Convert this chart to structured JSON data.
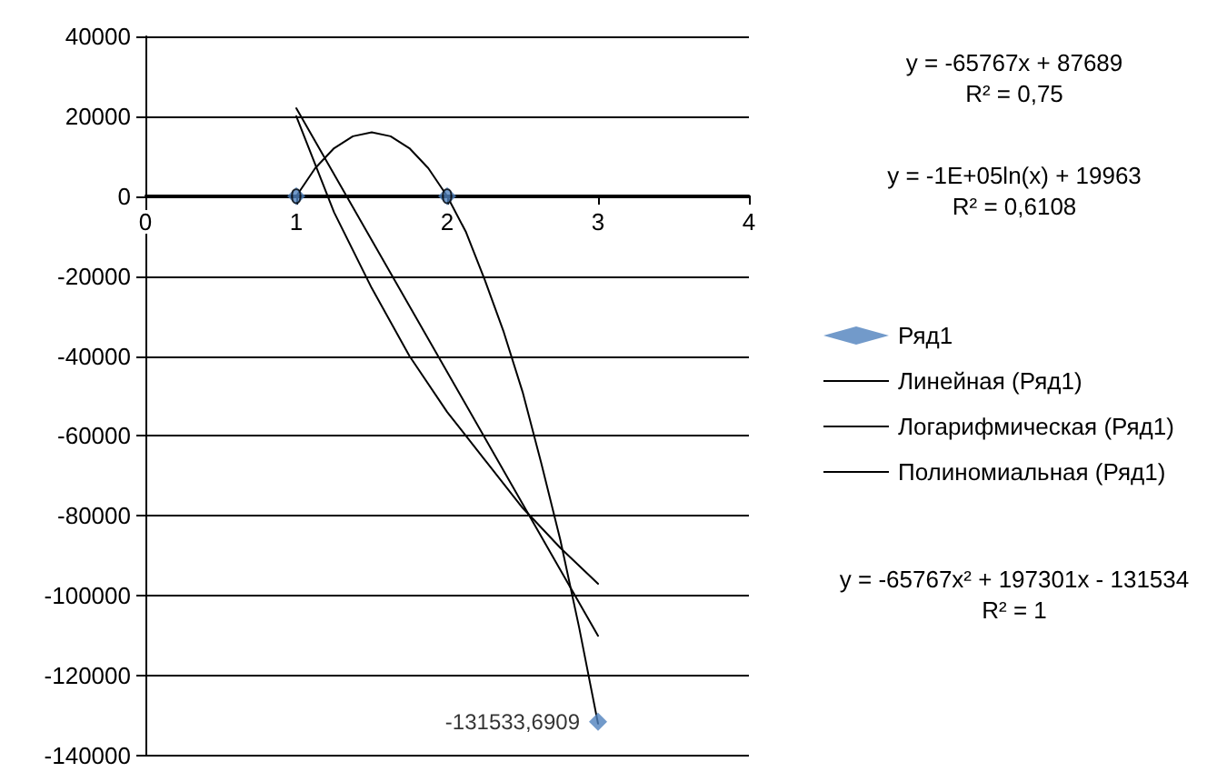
{
  "chart_data": {
    "type": "scatter",
    "xlim": [
      0,
      4
    ],
    "xticks": [
      0,
      1,
      2,
      3,
      4
    ],
    "ylim": [
      -140000,
      40000
    ],
    "yticks": [
      -140000,
      -120000,
      -100000,
      -80000,
      -60000,
      -40000,
      -20000,
      0,
      20000,
      40000
    ],
    "grid": "y",
    "legend": "right",
    "series": [
      {
        "name": "Ряд1",
        "marker": "diamond",
        "color": "#4f81bd",
        "x": [
          1,
          2,
          3
        ],
        "values": [
          0,
          0,
          -131533.6909
        ],
        "value_labels": [
          "0",
          "0",
          "-131533,6909"
        ]
      },
      {
        "name": "Линейная (Ряд1)",
        "type": "line",
        "marker": "none",
        "color": "#000000",
        "x": [
          1,
          3
        ],
        "values": [
          22000,
          -110000
        ]
      },
      {
        "name": "Логарифмическая (Ряд1)",
        "type": "line",
        "marker": "none",
        "color": "#000000",
        "x": [
          1,
          1.25,
          1.5,
          1.75,
          2,
          2.25,
          2.5,
          2.75,
          3
        ],
        "values": [
          20000,
          -4000,
          -23000,
          -40000,
          -54000,
          -66000,
          -78000,
          -88000,
          -97000
        ]
      },
      {
        "name": "Полиномиальная (Ряд1)",
        "type": "line",
        "marker": "none",
        "color": "#000000",
        "x": [
          1,
          1.125,
          1.25,
          1.375,
          1.5,
          1.625,
          1.75,
          1.875,
          2,
          2.125,
          2.25,
          2.375,
          2.5,
          2.625,
          2.75,
          2.875,
          3
        ],
        "values": [
          0,
          7000,
          12000,
          15000,
          16000,
          15000,
          12000,
          7000,
          0,
          -9000,
          -21000,
          -34000,
          -49000,
          -67000,
          -86000,
          -108000,
          -132000
        ]
      }
    ],
    "annotations": [
      "y = -65767x + 87689\nR² = 0,75",
      "y = -1E+05ln(x) + 19963\nR² = 0,6108",
      "y = -65767x² + 197301x - 131534\nR² = 1"
    ]
  }
}
